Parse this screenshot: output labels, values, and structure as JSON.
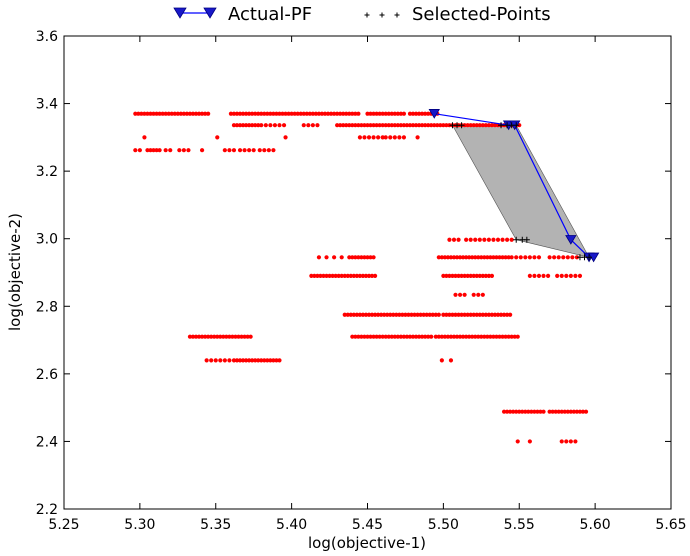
{
  "chart_data": {
    "type": "scatter",
    "xlabel": "log(objective-1)",
    "ylabel": "log(objective-2)",
    "xlim": [
      5.25,
      5.65
    ],
    "ylim": [
      2.2,
      3.6
    ],
    "xticks": [
      "5.25",
      "5.30",
      "5.35",
      "5.40",
      "5.45",
      "5.50",
      "5.55",
      "5.60",
      "5.65"
    ],
    "yticks": [
      "2.2",
      "2.4",
      "2.6",
      "2.8",
      "3.0",
      "3.2",
      "3.4",
      "3.6"
    ],
    "legend_position": "top-outside",
    "grid": false,
    "series": [
      {
        "name": "Actual-PF",
        "marker": "triangle-down",
        "line": true,
        "color": "#0000ff",
        "points": [
          [
            5.494,
            3.37
          ],
          [
            5.543,
            3.336
          ],
          [
            5.547,
            3.336
          ],
          [
            5.584,
            2.997
          ],
          [
            5.596,
            2.945
          ],
          [
            5.599,
            2.945
          ]
        ]
      },
      {
        "name": "Selected-Points",
        "marker": "plus",
        "line": false,
        "color": "#000000",
        "points": [
          [
            5.506,
            3.336
          ],
          [
            5.509,
            3.336
          ],
          [
            5.512,
            3.336
          ],
          [
            5.538,
            3.336
          ],
          [
            5.542,
            3.336
          ],
          [
            5.545,
            3.336
          ],
          [
            5.548,
            3.336
          ],
          [
            5.548,
            2.997
          ],
          [
            5.552,
            2.997
          ],
          [
            5.555,
            2.997
          ],
          [
            5.59,
            2.945
          ],
          [
            5.593,
            2.945
          ],
          [
            5.596,
            2.945
          ]
        ]
      },
      {
        "name": "",
        "marker": "dot",
        "line": false,
        "color": "#ff0000",
        "segments": [
          {
            "y": 3.37,
            "x0": 5.297,
            "x1": 5.345,
            "step": 0.002
          },
          {
            "y": 3.37,
            "x0": 5.36,
            "x1": 5.445,
            "step": 0.002
          },
          {
            "y": 3.37,
            "x0": 5.45,
            "x1": 5.475,
            "step": 0.002
          },
          {
            "y": 3.37,
            "x0": 5.478,
            "x1": 5.496,
            "step": 0.002
          },
          {
            "y": 3.336,
            "x0": 5.362,
            "x1": 5.38,
            "step": 0.002
          },
          {
            "y": 3.336,
            "x0": 5.383,
            "x1": 5.396,
            "step": 0.003
          },
          {
            "y": 3.336,
            "x0": 5.408,
            "x1": 5.418,
            "step": 0.003
          },
          {
            "y": 3.336,
            "x0": 5.43,
            "x1": 5.55,
            "step": 0.002
          },
          {
            "y": 3.3,
            "x0": 5.445,
            "x1": 5.46,
            "step": 0.003
          },
          {
            "y": 3.3,
            "x0": 5.462,
            "x1": 5.476,
            "step": 0.003
          },
          {
            "y": 3.262,
            "x0": 5.297,
            "x1": 5.302,
            "step": 0.003
          },
          {
            "y": 3.262,
            "x0": 5.305,
            "x1": 5.313,
            "step": 0.002
          },
          {
            "y": 3.262,
            "x0": 5.317,
            "x1": 5.322,
            "step": 0.003
          },
          {
            "y": 3.262,
            "x0": 5.326,
            "x1": 5.333,
            "step": 0.003
          },
          {
            "y": 3.262,
            "x0": 5.356,
            "x1": 5.364,
            "step": 0.003
          },
          {
            "y": 3.262,
            "x0": 5.366,
            "x1": 5.376,
            "step": 0.003
          },
          {
            "y": 3.262,
            "x0": 5.379,
            "x1": 5.388,
            "step": 0.003
          },
          {
            "y": 2.997,
            "x0": 5.504,
            "x1": 5.512,
            "step": 0.003
          },
          {
            "y": 2.997,
            "x0": 5.515,
            "x1": 5.53,
            "step": 0.003
          },
          {
            "y": 2.997,
            "x0": 5.533,
            "x1": 5.546,
            "step": 0.003
          },
          {
            "y": 2.945,
            "x0": 5.44,
            "x1": 5.455,
            "step": 0.002
          },
          {
            "y": 2.945,
            "x0": 5.497,
            "x1": 5.545,
            "step": 0.002
          },
          {
            "y": 2.945,
            "x0": 5.548,
            "x1": 5.565,
            "step": 0.003
          },
          {
            "y": 2.945,
            "x0": 5.57,
            "x1": 5.59,
            "step": 0.003
          },
          {
            "y": 2.89,
            "x0": 5.413,
            "x1": 5.455,
            "step": 0.002
          },
          {
            "y": 2.89,
            "x0": 5.5,
            "x1": 5.533,
            "step": 0.002
          },
          {
            "y": 2.89,
            "x0": 5.557,
            "x1": 5.57,
            "step": 0.003
          },
          {
            "y": 2.89,
            "x0": 5.575,
            "x1": 5.592,
            "step": 0.003
          },
          {
            "y": 2.834,
            "x0": 5.508,
            "x1": 5.515,
            "step": 0.003
          },
          {
            "y": 2.834,
            "x0": 5.52,
            "x1": 5.527,
            "step": 0.003
          },
          {
            "y": 2.775,
            "x0": 5.435,
            "x1": 5.498,
            "step": 0.002
          },
          {
            "y": 2.775,
            "x0": 5.5,
            "x1": 5.545,
            "step": 0.002
          },
          {
            "y": 2.71,
            "x0": 5.333,
            "x1": 5.373,
            "step": 0.002
          },
          {
            "y": 2.71,
            "x0": 5.44,
            "x1": 5.492,
            "step": 0.002
          },
          {
            "y": 2.71,
            "x0": 5.495,
            "x1": 5.55,
            "step": 0.002
          },
          {
            "y": 2.64,
            "x0": 5.344,
            "x1": 5.36,
            "step": 0.003
          },
          {
            "y": 2.64,
            "x0": 5.362,
            "x1": 5.392,
            "step": 0.002
          },
          {
            "y": 2.488,
            "x0": 5.54,
            "x1": 5.567,
            "step": 0.002
          },
          {
            "y": 2.488,
            "x0": 5.57,
            "x1": 5.594,
            "step": 0.002
          },
          {
            "y": 2.4,
            "x0": 5.578,
            "x1": 5.588,
            "step": 0.003
          }
        ],
        "points": [
          [
            5.303,
            3.3
          ],
          [
            5.341,
            3.262
          ],
          [
            5.351,
            3.3
          ],
          [
            5.396,
            3.3
          ],
          [
            5.483,
            3.3
          ],
          [
            5.418,
            2.945
          ],
          [
            5.423,
            2.945
          ],
          [
            5.428,
            2.945
          ],
          [
            5.433,
            2.945
          ],
          [
            5.438,
            2.945
          ],
          [
            5.499,
            2.64
          ],
          [
            5.505,
            2.64
          ],
          [
            5.549,
            2.4
          ],
          [
            5.557,
            2.4
          ]
        ]
      }
    ],
    "shaded_region": {
      "color": "#808080",
      "points": [
        [
          5.506,
          3.336
        ],
        [
          5.548,
          3.336
        ],
        [
          5.596,
          2.945
        ],
        [
          5.548,
          2.997
        ]
      ]
    }
  }
}
